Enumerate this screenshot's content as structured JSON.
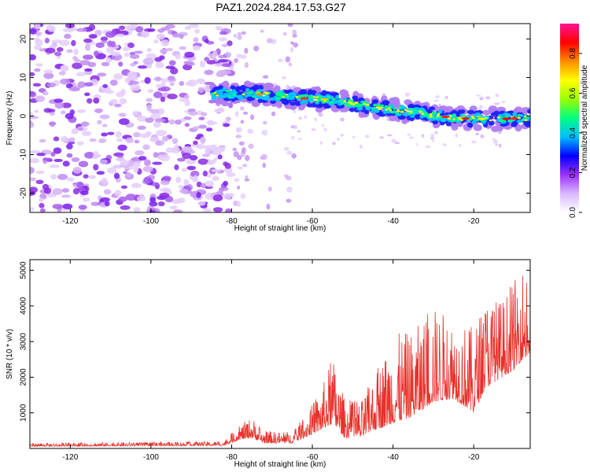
{
  "title": "PAZ1.2024.284.17.53.G27",
  "chart_data": [
    {
      "type": "heatmap",
      "title": "PAZ1.2024.284.17.53.G27",
      "xlabel": "Height of straight line (km)",
      "ylabel": "Frequency (Hz)",
      "xlim": [
        -130,
        -6
      ],
      "ylim": [
        -25,
        24
      ],
      "x_ticks": [
        -120,
        -100,
        -80,
        -60,
        -40,
        -20
      ],
      "y_ticks": [
        -20,
        -10,
        0,
        10,
        20
      ],
      "colorbar": {
        "label": "Normalized spectral amplitude",
        "range": [
          0.0,
          0.95
        ],
        "ticks": [
          0.0,
          0.2,
          0.4,
          0.6,
          0.8
        ],
        "colors": [
          "#ffffff",
          "#d9b8ff",
          "#9b30ff",
          "#0000ff",
          "#00bfff",
          "#00ff7f",
          "#9aff00",
          "#ffff00",
          "#ff8c00",
          "#ff0000",
          "#ff1493"
        ]
      },
      "signal_trace": [
        {
          "x": -85,
          "freq": 5.8
        },
        {
          "x": -75,
          "freq": 5.8
        },
        {
          "x": -70,
          "freq": 5.5
        },
        {
          "x": -62,
          "freq": 4.6
        },
        {
          "x": -55,
          "freq": 4.2
        },
        {
          "x": -45,
          "freq": 2.5
        },
        {
          "x": -35,
          "freq": 1.0
        },
        {
          "x": -25,
          "freq": -0.5
        },
        {
          "x": -15,
          "freq": -0.8
        },
        {
          "x": -6,
          "freq": -0.5
        }
      ],
      "noise_region_x": [
        -130,
        -80
      ]
    },
    {
      "type": "line",
      "xlabel": "Height of straight line (km)",
      "ylabel": "SNR (10 * v/v)",
      "xlim": [
        -130,
        -6
      ],
      "ylim": [
        0,
        5300
      ],
      "x_ticks": [
        -120,
        -100,
        -80,
        -60,
        -40,
        -20
      ],
      "y_ticks": [
        1000,
        2000,
        3000,
        4000,
        5000
      ],
      "color": "#e8302a",
      "envelope": [
        {
          "x": -130,
          "base": 60,
          "peak": 150
        },
        {
          "x": -82,
          "base": 80,
          "peak": 200
        },
        {
          "x": -78,
          "base": 250,
          "peak": 650
        },
        {
          "x": -75,
          "base": 300,
          "peak": 880
        },
        {
          "x": -72,
          "base": 150,
          "peak": 500
        },
        {
          "x": -65,
          "base": 150,
          "peak": 450
        },
        {
          "x": -62,
          "base": 300,
          "peak": 900
        },
        {
          "x": -58,
          "base": 500,
          "peak": 1600
        },
        {
          "x": -55,
          "base": 700,
          "peak": 2600
        },
        {
          "x": -52,
          "base": 300,
          "peak": 1400
        },
        {
          "x": -48,
          "base": 300,
          "peak": 1300
        },
        {
          "x": -45,
          "base": 500,
          "peak": 2000
        },
        {
          "x": -40,
          "base": 700,
          "peak": 3200
        },
        {
          "x": -35,
          "base": 900,
          "peak": 3300
        },
        {
          "x": -30,
          "base": 1300,
          "peak": 4000
        },
        {
          "x": -25,
          "base": 1400,
          "peak": 3700
        },
        {
          "x": -20,
          "base": 1000,
          "peak": 3400
        },
        {
          "x": -17,
          "base": 1700,
          "peak": 4300
        },
        {
          "x": -13,
          "base": 2000,
          "peak": 4200
        },
        {
          "x": -10,
          "base": 2200,
          "peak": 4700
        },
        {
          "x": -8,
          "base": 2500,
          "peak": 5250
        },
        {
          "x": -6,
          "base": 2600,
          "peak": 4400
        }
      ]
    }
  ]
}
